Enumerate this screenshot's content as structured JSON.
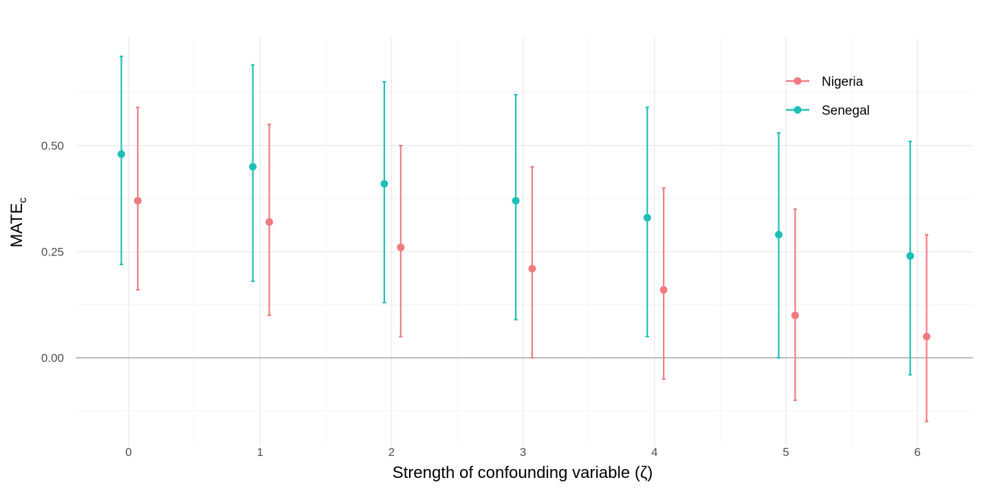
{
  "chart_data": {
    "type": "errorbar",
    "title": "",
    "xlabel": "Strength of confounding variable (ζ)",
    "ylabel": "MATE",
    "ylabel_subscript": "c",
    "x": [
      0,
      1,
      2,
      3,
      4,
      5,
      6
    ],
    "xlim": [
      -0.25,
      6.35
    ],
    "ylim": [
      -0.15,
      0.7
    ],
    "yticks": [
      0.0,
      0.25,
      0.5
    ],
    "ytick_labels": [
      "0.00",
      "0.25",
      "0.50"
    ],
    "xtick_labels": [
      "0",
      "1",
      "2",
      "3",
      "4",
      "5",
      "6"
    ],
    "reference_line_y": 0,
    "legend_position": "top-right",
    "series": [
      {
        "name": "Nigeria",
        "color": "#F07A80",
        "values": [
          0.37,
          0.32,
          0.26,
          0.21,
          0.16,
          0.1,
          0.05
        ],
        "lower": [
          0.16,
          0.1,
          0.05,
          0.0,
          -0.05,
          -0.1,
          -0.15
        ],
        "upper": [
          0.59,
          0.55,
          0.5,
          0.45,
          0.4,
          0.35,
          0.29
        ]
      },
      {
        "name": "Senegal",
        "color": "#1FBFB8",
        "values": [
          0.48,
          0.45,
          0.41,
          0.37,
          0.33,
          0.29,
          0.24
        ],
        "lower": [
          0.22,
          0.18,
          0.13,
          0.09,
          0.05,
          0.0,
          -0.04
        ],
        "upper": [
          0.71,
          0.69,
          0.65,
          0.62,
          0.59,
          0.53,
          0.51
        ]
      }
    ]
  }
}
